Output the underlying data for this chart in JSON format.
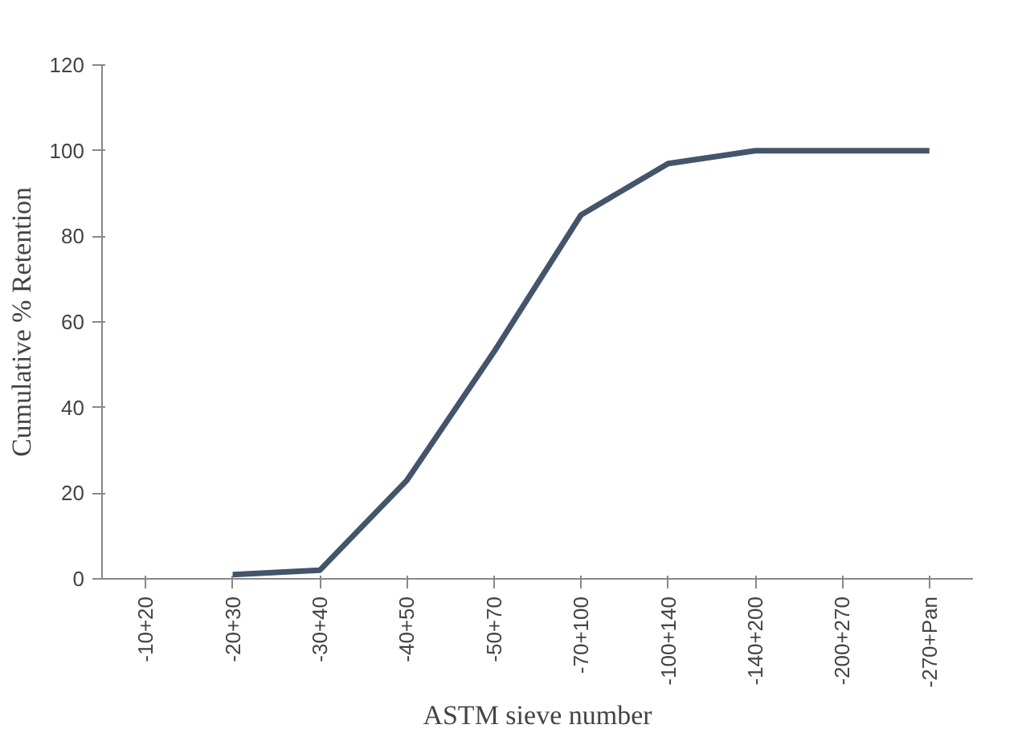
{
  "chart_data": {
    "type": "line",
    "xlabel": "ASTM sieve number",
    "ylabel": "Cumulative % Retention",
    "categories": [
      "-10+20",
      "-20+30",
      "-30+40",
      "-40+50",
      "-50+70",
      "-70+100",
      "-100+140",
      "-140+200",
      "-200+270",
      "-270+Pan"
    ],
    "series": [
      {
        "color": "#44546a",
        "values": [
          null,
          1,
          2,
          23,
          53,
          85,
          97,
          100,
          100,
          100
        ]
      }
    ],
    "ylim": [
      0,
      120
    ],
    "yticks": [
      0,
      20,
      40,
      60,
      80,
      100,
      120
    ],
    "grid": false,
    "marker": "none",
    "line_style": "solid"
  }
}
